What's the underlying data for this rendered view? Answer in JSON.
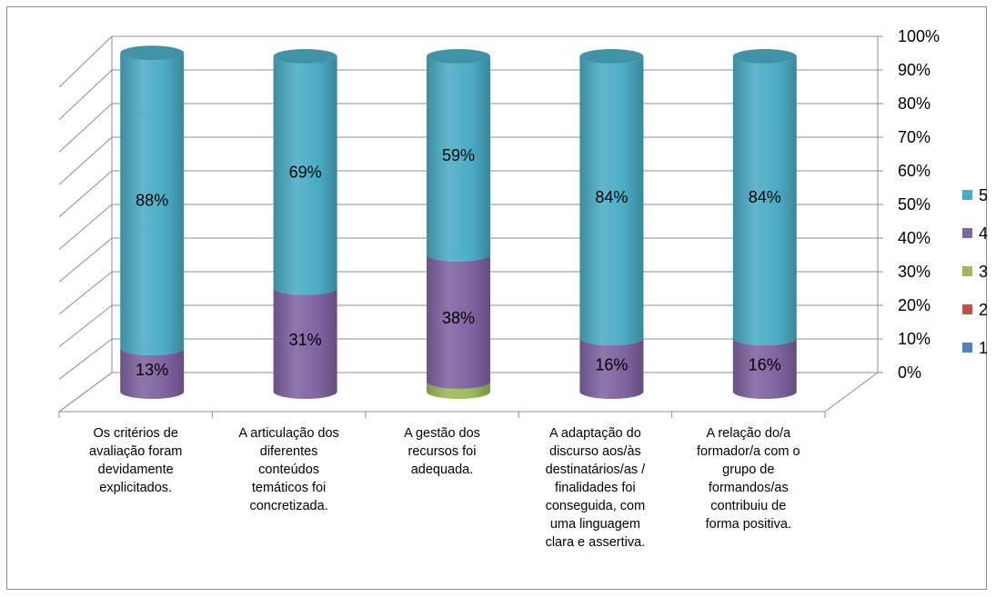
{
  "chart_data": {
    "type": "bar",
    "stacked": true,
    "style": "3d-cylinder",
    "categories": [
      "Os critérios de avaliação foram devidamente explicitados.",
      "A articulação dos diferentes conteúdos temáticos foi concretizada.",
      "A gestão dos recursos foi adequada.",
      "A adaptação do discurso aos/às destinatários/as / finalidades foi conseguida, com uma linguagem clara e assertiva.",
      "A relação do/a formador/a com o grupo de formandos/as contribuiu de forma positiva."
    ],
    "category_lines": [
      [
        "Os critérios de",
        "avaliação foram",
        "devidamente",
        "explicitados."
      ],
      [
        "A articulação dos",
        "diferentes",
        "conteúdos",
        "temáticos foi",
        "concretizada."
      ],
      [
        "A gestão dos",
        "recursos foi",
        "adequada."
      ],
      [
        "A adaptação do",
        "discurso aos/às",
        "destinatários/as /",
        "finalidades foi",
        "conseguida, com",
        "uma linguagem",
        "clara e assertiva."
      ],
      [
        "A relação do/a",
        "formador/a com o",
        "grupo de",
        "formandos/as",
        "contribuiu de",
        "forma positiva."
      ]
    ],
    "series": [
      {
        "name": "1",
        "values": [
          0,
          0,
          0,
          0,
          0
        ],
        "color": "#4F81BD"
      },
      {
        "name": "2",
        "values": [
          0,
          0,
          0,
          0,
          0
        ],
        "color": "#C0504D"
      },
      {
        "name": "3",
        "values": [
          0,
          0,
          3,
          0,
          0
        ],
        "color": "#9BBB59"
      },
      {
        "name": "4",
        "values": [
          13,
          31,
          38,
          16,
          16
        ],
        "color": "#8064A2"
      },
      {
        "name": "5",
        "values": [
          88,
          69,
          59,
          84,
          84
        ],
        "color": "#4BACC6"
      }
    ],
    "data_labels": [
      {
        "category": 0,
        "series": "4",
        "text": "13%"
      },
      {
        "category": 0,
        "series": "5",
        "text": "88%"
      },
      {
        "category": 1,
        "series": "4",
        "text": "31%"
      },
      {
        "category": 1,
        "series": "5",
        "text": "69%"
      },
      {
        "category": 2,
        "series": "4",
        "text": "38%"
      },
      {
        "category": 2,
        "series": "5",
        "text": "59%"
      },
      {
        "category": 3,
        "series": "4",
        "text": "16%"
      },
      {
        "category": 3,
        "series": "5",
        "text": "84%"
      },
      {
        "category": 4,
        "series": "4",
        "text": "16%"
      },
      {
        "category": 4,
        "series": "5",
        "text": "84%"
      }
    ],
    "y_ticks": [
      "0%",
      "10%",
      "20%",
      "30%",
      "40%",
      "50%",
      "60%",
      "70%",
      "80%",
      "90%",
      "100%"
    ],
    "ylim": [
      0,
      100
    ],
    "y_unit": "%",
    "grid": true,
    "legend_position": "right",
    "legend_order": [
      "5",
      "4",
      "3",
      "2",
      "1"
    ],
    "title": "",
    "xlabel": "",
    "ylabel": ""
  }
}
